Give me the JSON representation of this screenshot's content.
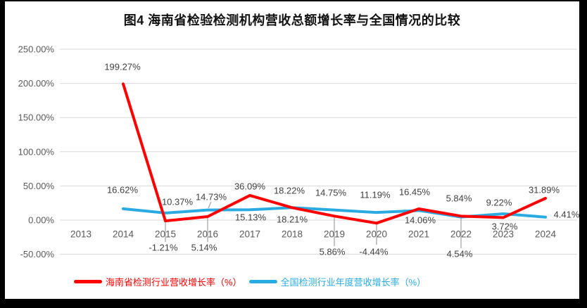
{
  "title": "图4 海南省检验检测机构营收总额增长率与全国情况的比较",
  "colors": {
    "frame": "#000000",
    "background": "#ffffff",
    "gridline": "#d9d9d9",
    "axis_text": "#595959",
    "label_text": "#404040",
    "leader_line": "#a6a6a6",
    "hainan_red": "#ff0000",
    "national_blue": "#29abe2"
  },
  "chart_data": {
    "type": "line",
    "title": "图4 海南省检验检测机构营收总额增长率与全国情况的比较",
    "categories": [
      "2013",
      "2014",
      "2015",
      "2016",
      "2017",
      "2018",
      "2019",
      "2020",
      "2021",
      "2022",
      "2023",
      "2024"
    ],
    "series": [
      {
        "id": "hainan",
        "name": "海南省检测行业营收增长率（%）",
        "color": "#ff0000",
        "values": [
          null,
          199.27,
          -1.21,
          5.14,
          36.09,
          18.22,
          5.86,
          -4.44,
          16.45,
          5.84,
          3.72,
          31.89
        ],
        "labels": [
          "",
          "199.27%",
          "-1.21%",
          "5.14%",
          "36.09%",
          "18.22%",
          "5.86%",
          "-4.44%",
          "16.45%",
          "5.84%",
          "3.72%",
          "31.89%"
        ]
      },
      {
        "id": "national",
        "name": "全国检测行业年度营收增长率（%）",
        "color": "#29abe2",
        "values": [
          null,
          16.62,
          10.37,
          14.73,
          15.13,
          18.21,
          14.75,
          11.19,
          14.06,
          4.54,
          9.22,
          4.41
        ],
        "labels": [
          "",
          "16.62%",
          "10.37%",
          "14.73%",
          "15.13%",
          "18.21%",
          "14.75%",
          "11.19%",
          "14.06%",
          "4.54%",
          "9.22%",
          "4.41%"
        ]
      }
    ],
    "y_axis": {
      "ticks": [
        "250.00%",
        "200.00%",
        "150.00%",
        "100.00%",
        "50.00%",
        "0.00%",
        "-50.00%"
      ],
      "tick_values": [
        250,
        200,
        150,
        100,
        50,
        0,
        -50
      ],
      "min": -50,
      "max": 250,
      "unit": "%"
    },
    "grid": true,
    "legend_position": "bottom"
  }
}
